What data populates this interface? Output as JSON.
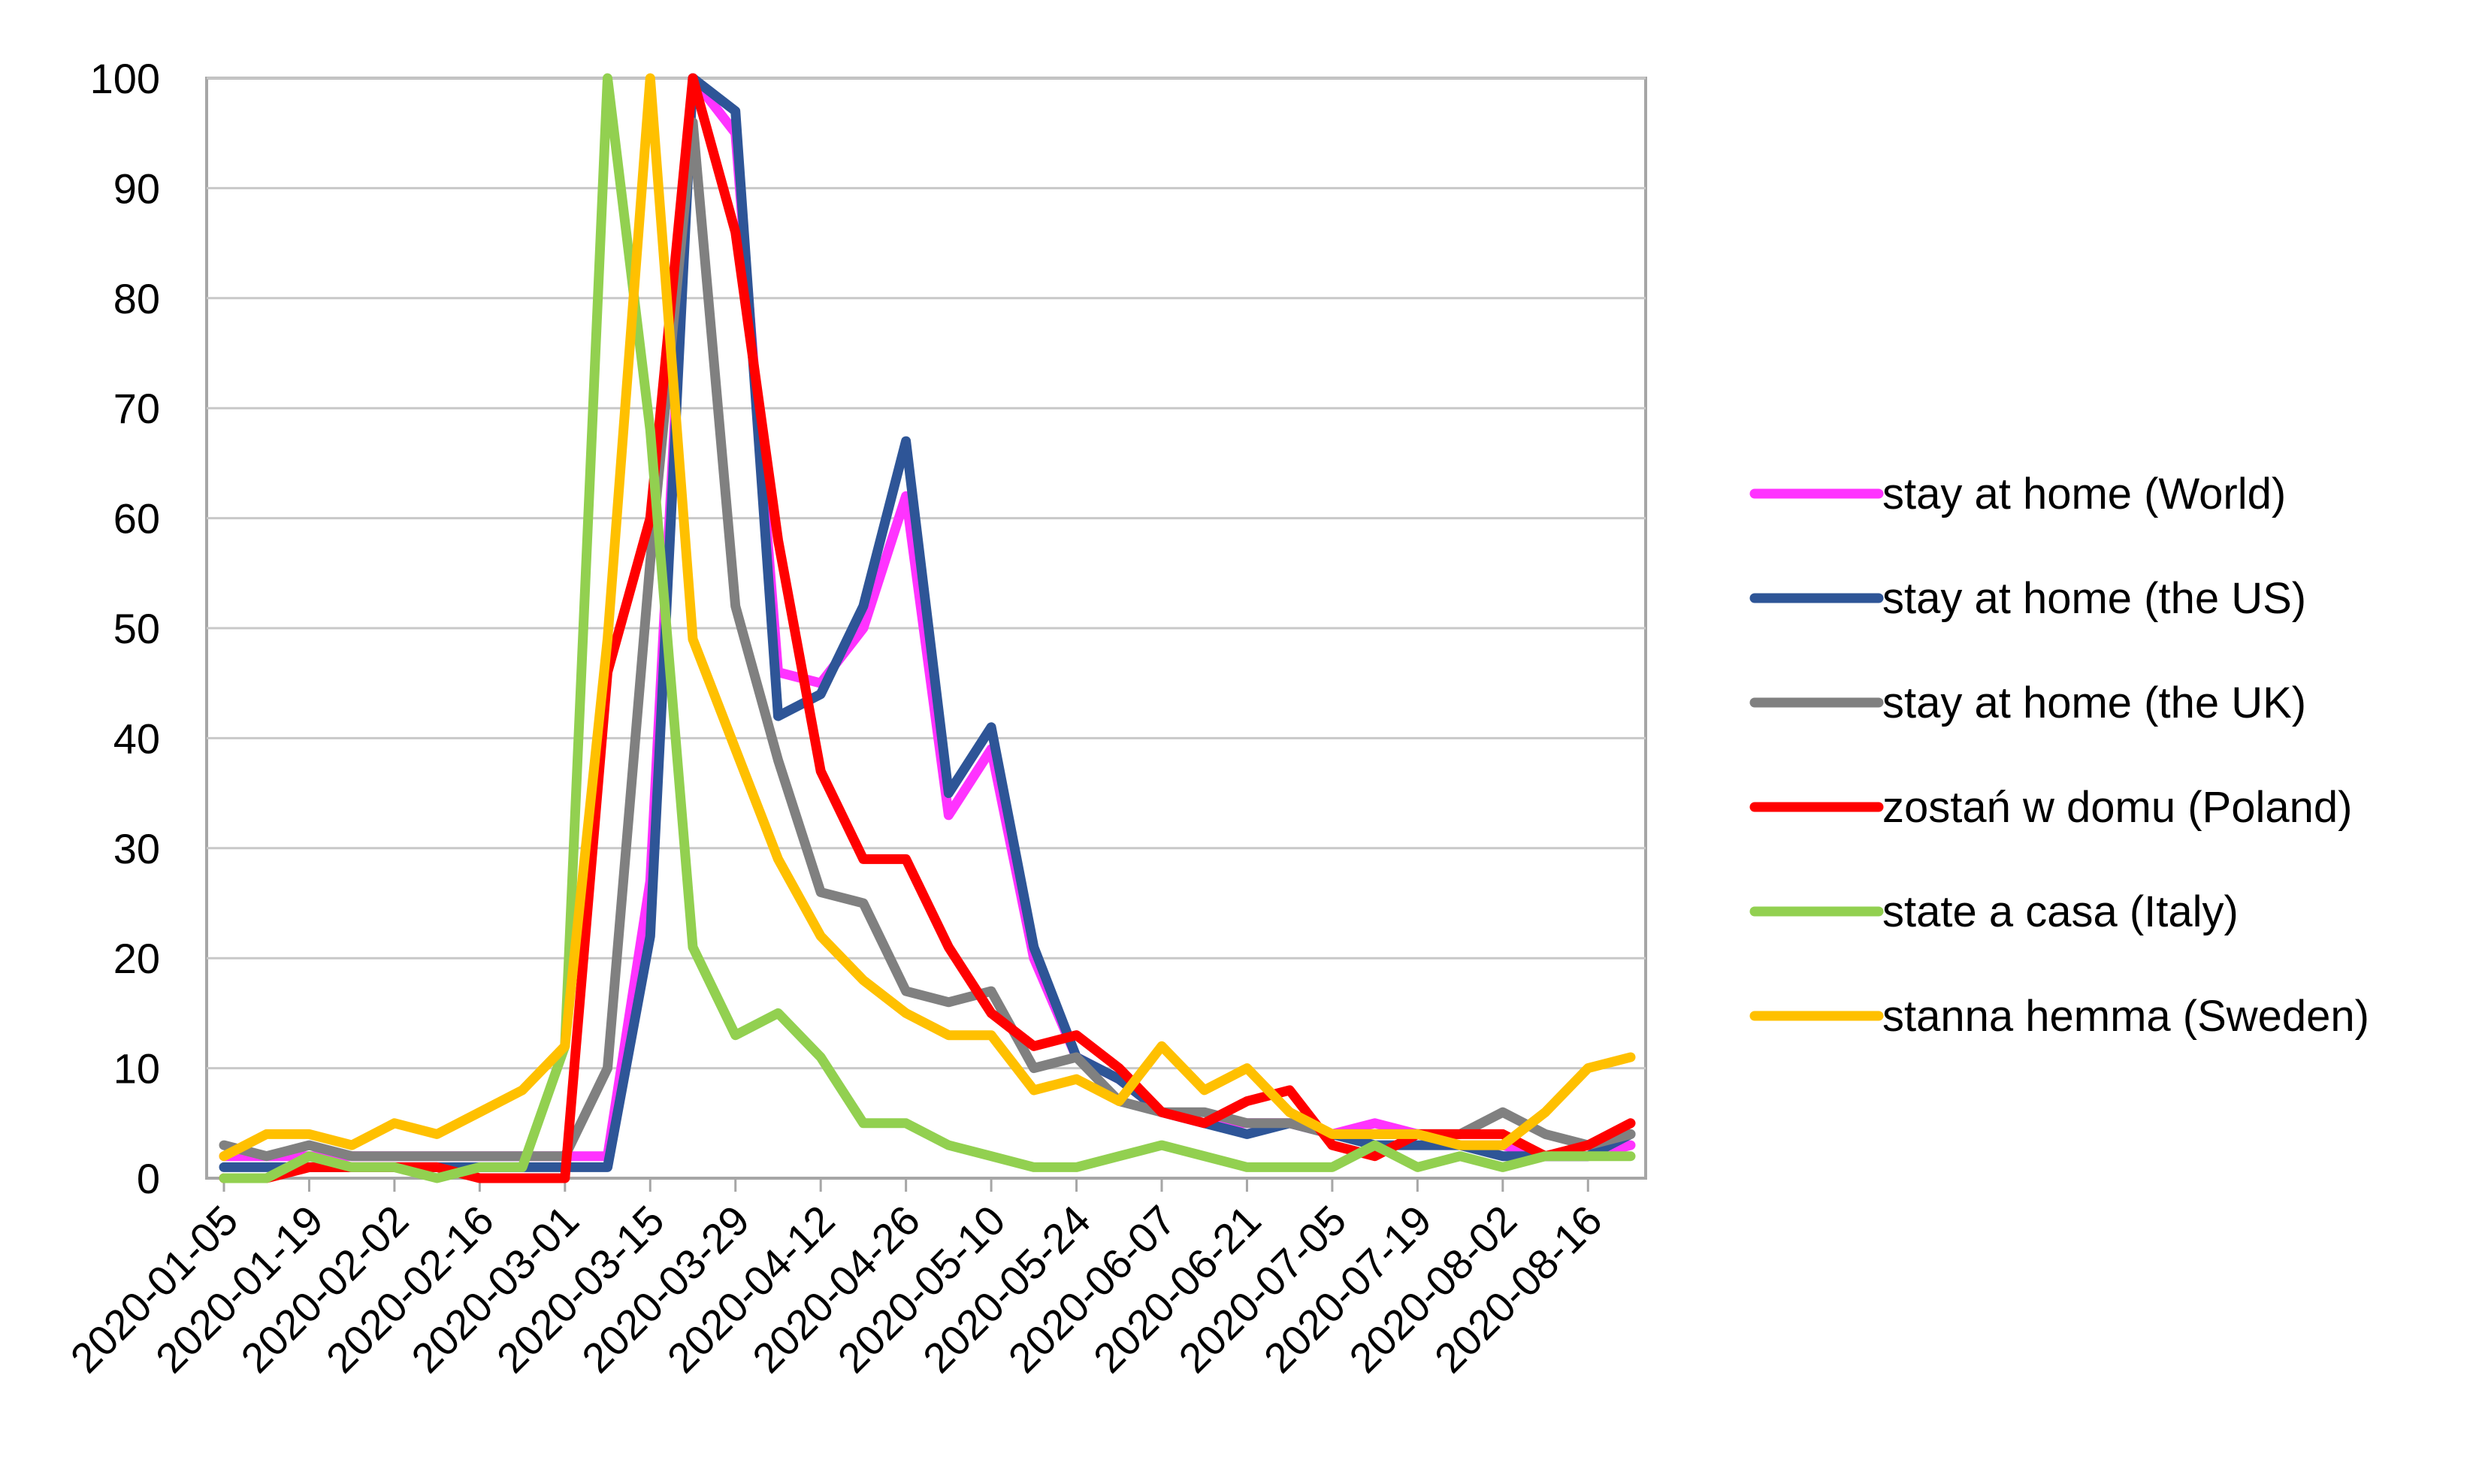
{
  "chart_data": {
    "type": "line",
    "title": "",
    "xlabel": "",
    "ylabel": "",
    "ylim": [
      0,
      100
    ],
    "yticks": [
      0,
      10,
      20,
      30,
      40,
      50,
      60,
      70,
      80,
      90,
      100
    ],
    "grid": "horizontal",
    "legend_position": "right",
    "x": [
      "2020-01-05",
      "2020-01-12",
      "2020-01-19",
      "2020-01-26",
      "2020-02-02",
      "2020-02-09",
      "2020-02-16",
      "2020-02-23",
      "2020-03-01",
      "2020-03-08",
      "2020-03-15",
      "2020-03-22",
      "2020-03-29",
      "2020-04-05",
      "2020-04-12",
      "2020-04-19",
      "2020-04-26",
      "2020-05-03",
      "2020-05-10",
      "2020-05-17",
      "2020-05-24",
      "2020-05-31",
      "2020-06-07",
      "2020-06-14",
      "2020-06-21",
      "2020-06-28",
      "2020-07-05",
      "2020-07-12",
      "2020-07-19",
      "2020-07-26",
      "2020-08-02",
      "2020-08-09",
      "2020-08-16",
      "2020-08-23"
    ],
    "xtick_labels": [
      "2020-01-05",
      "2020-01-19",
      "2020-02-02",
      "2020-02-16",
      "2020-03-01",
      "2020-03-15",
      "2020-03-29",
      "2020-04-12",
      "2020-04-26",
      "2020-05-10",
      "2020-05-24",
      "2020-06-07",
      "2020-06-21",
      "2020-07-05",
      "2020-07-19",
      "2020-08-02",
      "2020-08-16"
    ],
    "series": [
      {
        "name": "stay at home (World)",
        "color": "#ff33ff",
        "values": [
          2,
          2,
          2,
          2,
          2,
          2,
          2,
          2,
          2,
          2,
          27,
          100,
          95,
          46,
          45,
          50,
          62,
          33,
          39,
          20,
          11,
          9,
          6,
          5,
          5,
          5,
          4,
          5,
          4,
          3,
          3,
          2,
          2,
          3
        ]
      },
      {
        "name": "stay at home (the US)",
        "color": "#2e5597",
        "values": [
          1,
          1,
          1,
          1,
          1,
          1,
          1,
          1,
          1,
          1,
          22,
          100,
          97,
          42,
          44,
          52,
          67,
          35,
          41,
          21,
          11,
          9,
          6,
          5,
          4,
          5,
          4,
          3,
          3,
          3,
          2,
          2,
          2,
          4
        ]
      },
      {
        "name": "stay at home (the UK)",
        "color": "#808080",
        "values": [
          3,
          2,
          3,
          2,
          2,
          2,
          2,
          2,
          2,
          10,
          56,
          96,
          52,
          38,
          26,
          25,
          17,
          16,
          17,
          10,
          11,
          7,
          6,
          6,
          5,
          5,
          4,
          4,
          4,
          4,
          6,
          4,
          3,
          4
        ]
      },
      {
        "name": "zostań w domu (Poland)",
        "color": "#ff0000",
        "values": [
          0,
          0,
          1,
          1,
          1,
          1,
          0,
          0,
          0,
          46,
          60,
          100,
          86,
          58,
          37,
          29,
          29,
          21,
          15,
          12,
          13,
          10,
          6,
          5,
          7,
          8,
          3,
          2,
          4,
          4,
          4,
          2,
          3,
          5
        ]
      },
      {
        "name": "state a casa (Italy)",
        "color": "#92d050",
        "values": [
          0,
          0,
          2,
          1,
          1,
          0,
          1,
          1,
          12,
          100,
          68,
          21,
          13,
          15,
          11,
          5,
          5,
          3,
          2,
          1,
          1,
          2,
          3,
          2,
          1,
          1,
          1,
          3,
          1,
          2,
          1,
          2,
          2,
          2
        ]
      },
      {
        "name": "stanna hemma (Sweden)",
        "color": "#ffc000",
        "values": [
          2,
          4,
          4,
          3,
          5,
          4,
          6,
          8,
          12,
          49,
          100,
          49,
          39,
          29,
          22,
          18,
          15,
          13,
          13,
          8,
          9,
          7,
          12,
          8,
          10,
          6,
          4,
          4,
          4,
          3,
          3,
          6,
          10,
          11
        ]
      }
    ]
  }
}
